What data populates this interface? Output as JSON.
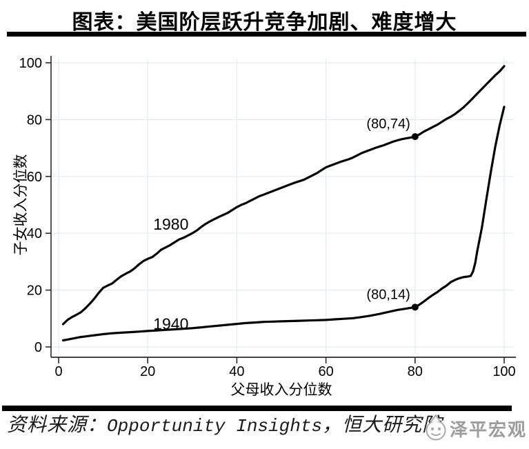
{
  "header": {
    "title": "图表：美国阶层跃升竞争加剧、难度增大"
  },
  "footer": {
    "source_label": "资料来源：",
    "source_english": "Opportunity Insights",
    "source_separator": "，",
    "source_org": "恒大研究院",
    "watermark": "泽平宏观"
  },
  "chart_data": {
    "type": "line",
    "title": "",
    "xlabel": "父母收入分位数",
    "ylabel": "子女收入分位数",
    "xlim": [
      0,
      100
    ],
    "ylim": [
      0,
      100
    ],
    "xticks": [
      0,
      20,
      40,
      60,
      80,
      100
    ],
    "yticks": [
      0,
      20,
      40,
      60,
      80,
      100
    ],
    "grid": true,
    "grid_color": "#e3ebf0",
    "axis_color": "#2a2a2a",
    "line_color": "#000000",
    "series": [
      {
        "name": "1980",
        "label_pos": {
          "x": 25.2,
          "y": 43.2
        },
        "points": [
          [
            1,
            8
          ],
          [
            2,
            9.5
          ],
          [
            3,
            10.5
          ],
          [
            4,
            11.3
          ],
          [
            5,
            12.2
          ],
          [
            6,
            13.6
          ],
          [
            7,
            15.2
          ],
          [
            8,
            17
          ],
          [
            9,
            19
          ],
          [
            10,
            20.8
          ],
          [
            11,
            21.6
          ],
          [
            12,
            22.3
          ],
          [
            13,
            23.6
          ],
          [
            14,
            24.8
          ],
          [
            15,
            25.7
          ],
          [
            16,
            26.5
          ],
          [
            17,
            27.6
          ],
          [
            18,
            29
          ],
          [
            19,
            30.2
          ],
          [
            20,
            31
          ],
          [
            21,
            31.6
          ],
          [
            22,
            32.8
          ],
          [
            23,
            34.2
          ],
          [
            24,
            35
          ],
          [
            25,
            35.8
          ],
          [
            26,
            36.8
          ],
          [
            27,
            37.8
          ],
          [
            28,
            38.4
          ],
          [
            29,
            39.2
          ],
          [
            30,
            40
          ],
          [
            31,
            41
          ],
          [
            32,
            42.2
          ],
          [
            33,
            43.3
          ],
          [
            34,
            44.2
          ],
          [
            35,
            45
          ],
          [
            36,
            45.8
          ],
          [
            37,
            46.5
          ],
          [
            38,
            47.2
          ],
          [
            39,
            48.2
          ],
          [
            40,
            49.2
          ],
          [
            41,
            50
          ],
          [
            42,
            50.6
          ],
          [
            43,
            51.4
          ],
          [
            44,
            52.2
          ],
          [
            45,
            53
          ],
          [
            46,
            53.6
          ],
          [
            47,
            54.2
          ],
          [
            48,
            54.8
          ],
          [
            49,
            55.4
          ],
          [
            50,
            56
          ],
          [
            51,
            56.6
          ],
          [
            52,
            57.2
          ],
          [
            53,
            57.8
          ],
          [
            54,
            58.3
          ],
          [
            55,
            58.8
          ],
          [
            56,
            59.6
          ],
          [
            57,
            60.4
          ],
          [
            58,
            61.2
          ],
          [
            59,
            62.2
          ],
          [
            60,
            63.2
          ],
          [
            61,
            63.8
          ],
          [
            62,
            64.4
          ],
          [
            63,
            65
          ],
          [
            64,
            65.5
          ],
          [
            65,
            66
          ],
          [
            66,
            66.6
          ],
          [
            67,
            67.4
          ],
          [
            68,
            68.2
          ],
          [
            69,
            68.8
          ],
          [
            70,
            69.4
          ],
          [
            71,
            70
          ],
          [
            72,
            70.5
          ],
          [
            73,
            71
          ],
          [
            74,
            71.6
          ],
          [
            75,
            72.2
          ],
          [
            76,
            72.7
          ],
          [
            77,
            73.1
          ],
          [
            78,
            73.4
          ],
          [
            79,
            73.7
          ],
          [
            80,
            74
          ],
          [
            81,
            74.8
          ],
          [
            82,
            75.8
          ],
          [
            83,
            76.6
          ],
          [
            84,
            77.4
          ],
          [
            85,
            78.2
          ],
          [
            86,
            79.2
          ],
          [
            87,
            80.2
          ],
          [
            88,
            81
          ],
          [
            89,
            82
          ],
          [
            90,
            83.2
          ],
          [
            91,
            84.5
          ],
          [
            92,
            86
          ],
          [
            93,
            87.6
          ],
          [
            94,
            89.2
          ],
          [
            95,
            90.8
          ],
          [
            96,
            92.4
          ],
          [
            97,
            94
          ],
          [
            98,
            95.6
          ],
          [
            99,
            97
          ],
          [
            100,
            98.8
          ]
        ]
      },
      {
        "name": "1940",
        "label_pos": {
          "x": 25.2,
          "y": 8.1
        },
        "points": [
          [
            1,
            2.3
          ],
          [
            2,
            2.6
          ],
          [
            3,
            2.9
          ],
          [
            4,
            3.2
          ],
          [
            5,
            3.5
          ],
          [
            6,
            3.7
          ],
          [
            7,
            3.9
          ],
          [
            8,
            4.1
          ],
          [
            9,
            4.3
          ],
          [
            10,
            4.5
          ],
          [
            12,
            4.8
          ],
          [
            14,
            5.0
          ],
          [
            16,
            5.2
          ],
          [
            18,
            5.4
          ],
          [
            20,
            5.6
          ],
          [
            22,
            5.8
          ],
          [
            24,
            6.0
          ],
          [
            26,
            6.2
          ],
          [
            28,
            6.4
          ],
          [
            30,
            6.6
          ],
          [
            32,
            6.9
          ],
          [
            34,
            7.2
          ],
          [
            36,
            7.5
          ],
          [
            38,
            7.8
          ],
          [
            40,
            8.1
          ],
          [
            42,
            8.4
          ],
          [
            44,
            8.6
          ],
          [
            46,
            8.8
          ],
          [
            48,
            8.9
          ],
          [
            50,
            9.0
          ],
          [
            52,
            9.1
          ],
          [
            54,
            9.2
          ],
          [
            56,
            9.3
          ],
          [
            58,
            9.4
          ],
          [
            60,
            9.5
          ],
          [
            62,
            9.7
          ],
          [
            64,
            9.9
          ],
          [
            66,
            10.1
          ],
          [
            68,
            10.5
          ],
          [
            70,
            11.0
          ],
          [
            72,
            11.6
          ],
          [
            74,
            12.3
          ],
          [
            76,
            13.0
          ],
          [
            78,
            13.5
          ],
          [
            80,
            14
          ],
          [
            81,
            14.9
          ],
          [
            82,
            16
          ],
          [
            83,
            17.2
          ],
          [
            84,
            18.3
          ],
          [
            85,
            19.3
          ],
          [
            86,
            20.5
          ],
          [
            87,
            21.5
          ],
          [
            88,
            22.8
          ],
          [
            89,
            23.6
          ],
          [
            90,
            24.2
          ],
          [
            91,
            24.6
          ],
          [
            92,
            24.8
          ],
          [
            92.5,
            25
          ],
          [
            93,
            26.5
          ],
          [
            93.5,
            29.5
          ],
          [
            94,
            34
          ],
          [
            95,
            42
          ],
          [
            96,
            52
          ],
          [
            97,
            61.5
          ],
          [
            98,
            70.5
          ],
          [
            99,
            78
          ],
          [
            100,
            84.5
          ]
        ]
      }
    ],
    "annotations": [
      {
        "text": "(80,74)",
        "x": 80,
        "y": 74
      },
      {
        "text": "(80,14)",
        "x": 80,
        "y": 14
      }
    ]
  }
}
